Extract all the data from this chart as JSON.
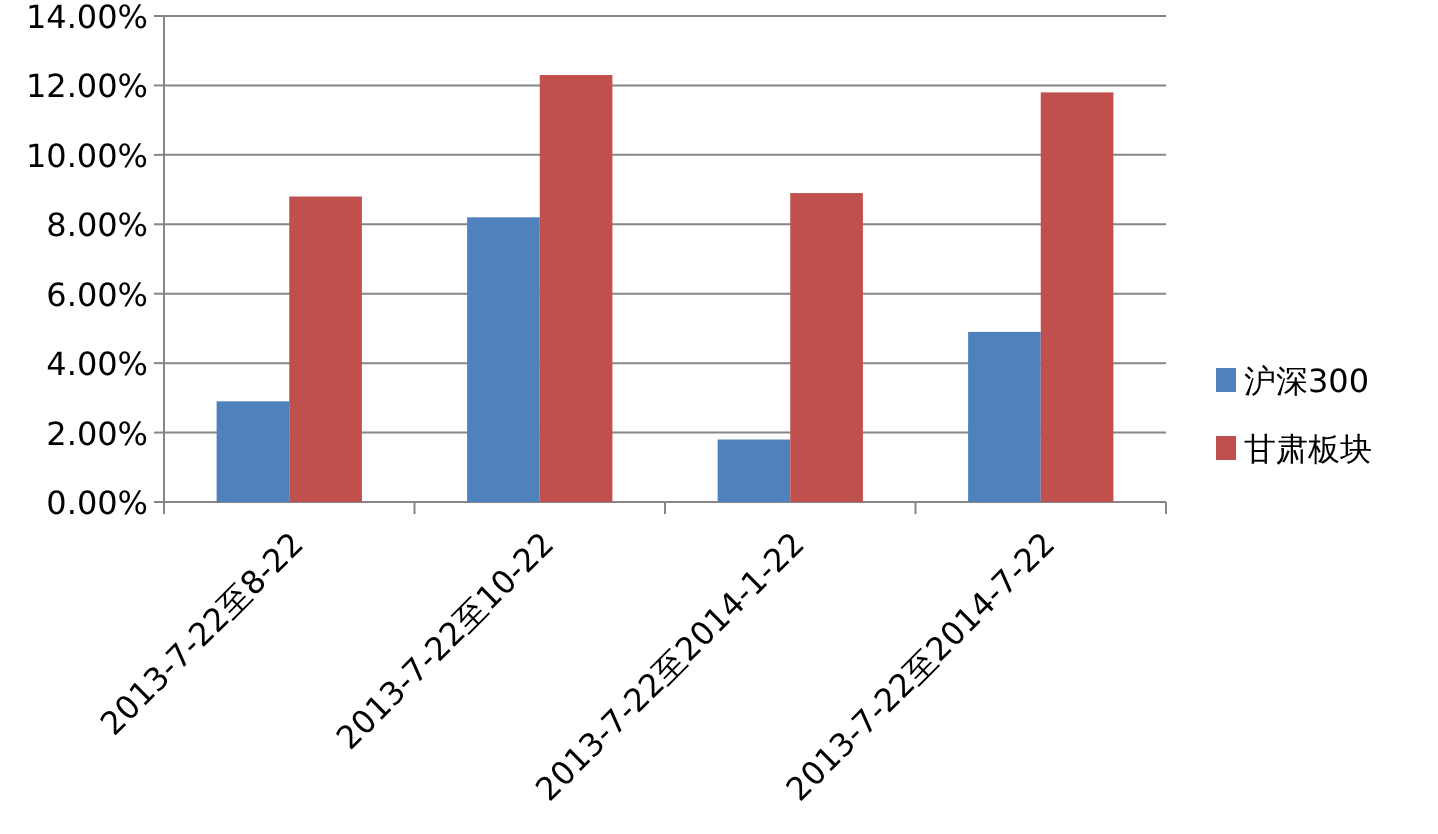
{
  "chart_data": {
    "type": "bar",
    "categories": [
      "2013-7-22至8-22",
      "2013-7-22至10-22",
      "2013-7-22至2014-1-22",
      "2013-7-22至2014-7-22"
    ],
    "series": [
      {
        "name": "沪深300",
        "color": "#4f81bd",
        "values": [
          2.9,
          8.2,
          1.8,
          4.9
        ]
      },
      {
        "name": "甘肃板块",
        "color": "#c0504d",
        "values": [
          8.8,
          12.3,
          8.9,
          11.8
        ]
      }
    ],
    "ylim": [
      0,
      14
    ],
    "yticks": [
      {
        "value": 0,
        "label": "0.00%"
      },
      {
        "value": 2,
        "label": "2.00%"
      },
      {
        "value": 4,
        "label": "4.00%"
      },
      {
        "value": 6,
        "label": "6.00%"
      },
      {
        "value": 8,
        "label": "8.00%"
      },
      {
        "value": 10,
        "label": "10.00%"
      },
      {
        "value": 12,
        "label": "12.00%"
      },
      {
        "value": 14,
        "label": "14.00%"
      }
    ],
    "grid": "y",
    "legend": "right"
  }
}
